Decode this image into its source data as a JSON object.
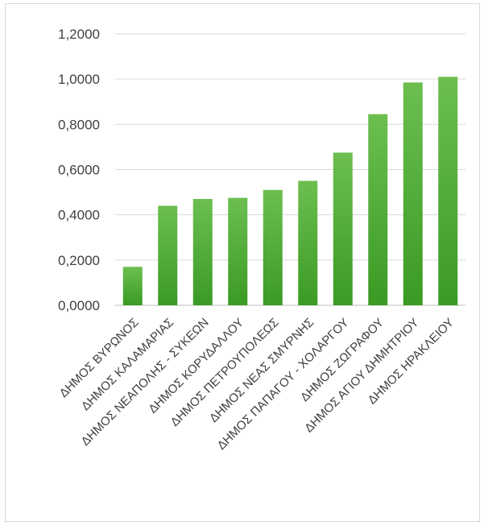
{
  "chart_data": {
    "type": "bar",
    "title": "",
    "xlabel": "",
    "ylabel": "",
    "ylim": [
      0,
      1.2
    ],
    "y_ticks": [
      "0,0000",
      "0,2000",
      "0,4000",
      "0,6000",
      "0,8000",
      "1,0000",
      "1,2000"
    ],
    "y_tick_values": [
      0,
      0.2,
      0.4,
      0.6,
      0.8,
      1.0,
      1.2
    ],
    "grid": true,
    "legend": "none",
    "categories": [
      "ΔΗΜΟΣ ΒΥΡΩΝΟΣ",
      "ΔΗΜΟΣ ΚΑΛΑΜΑΡΙΑΣ",
      "ΔΗΜΟΣ ΝΕΑΠΟΛΗΣ - ΣΥΚΕΩΝ",
      "ΔΗΜΟΣ ΚΟΡΥΔΑΛΛΟΥ",
      "ΔΗΜΟΣ ΠΕΤΡΟΥΠΟΛΕΩΣ",
      "ΔΗΜΟΣ ΝΕΑΣ ΣΜΥΡΝΗΣ",
      "ΔΗΜΟΣ ΠΑΠΑΓΟΥ - ΧΟΛΑΡΓΟΥ",
      "ΔΗΜΟΣ ΖΩΓΡΑΦΟΥ",
      "ΔΗΜΟΣ ΑΓΙΟΥ ΔΗΜΗΤΡΙΟΥ",
      "ΔΗΜΟΣ ΗΡΑΚΛΕΙΟΥ"
    ],
    "values": [
      0.17,
      0.44,
      0.47,
      0.475,
      0.51,
      0.55,
      0.675,
      0.845,
      0.985,
      1.01
    ],
    "colors": {
      "bar_top": "#6cbf4f",
      "bar_bottom": "#3a9a24"
    }
  }
}
